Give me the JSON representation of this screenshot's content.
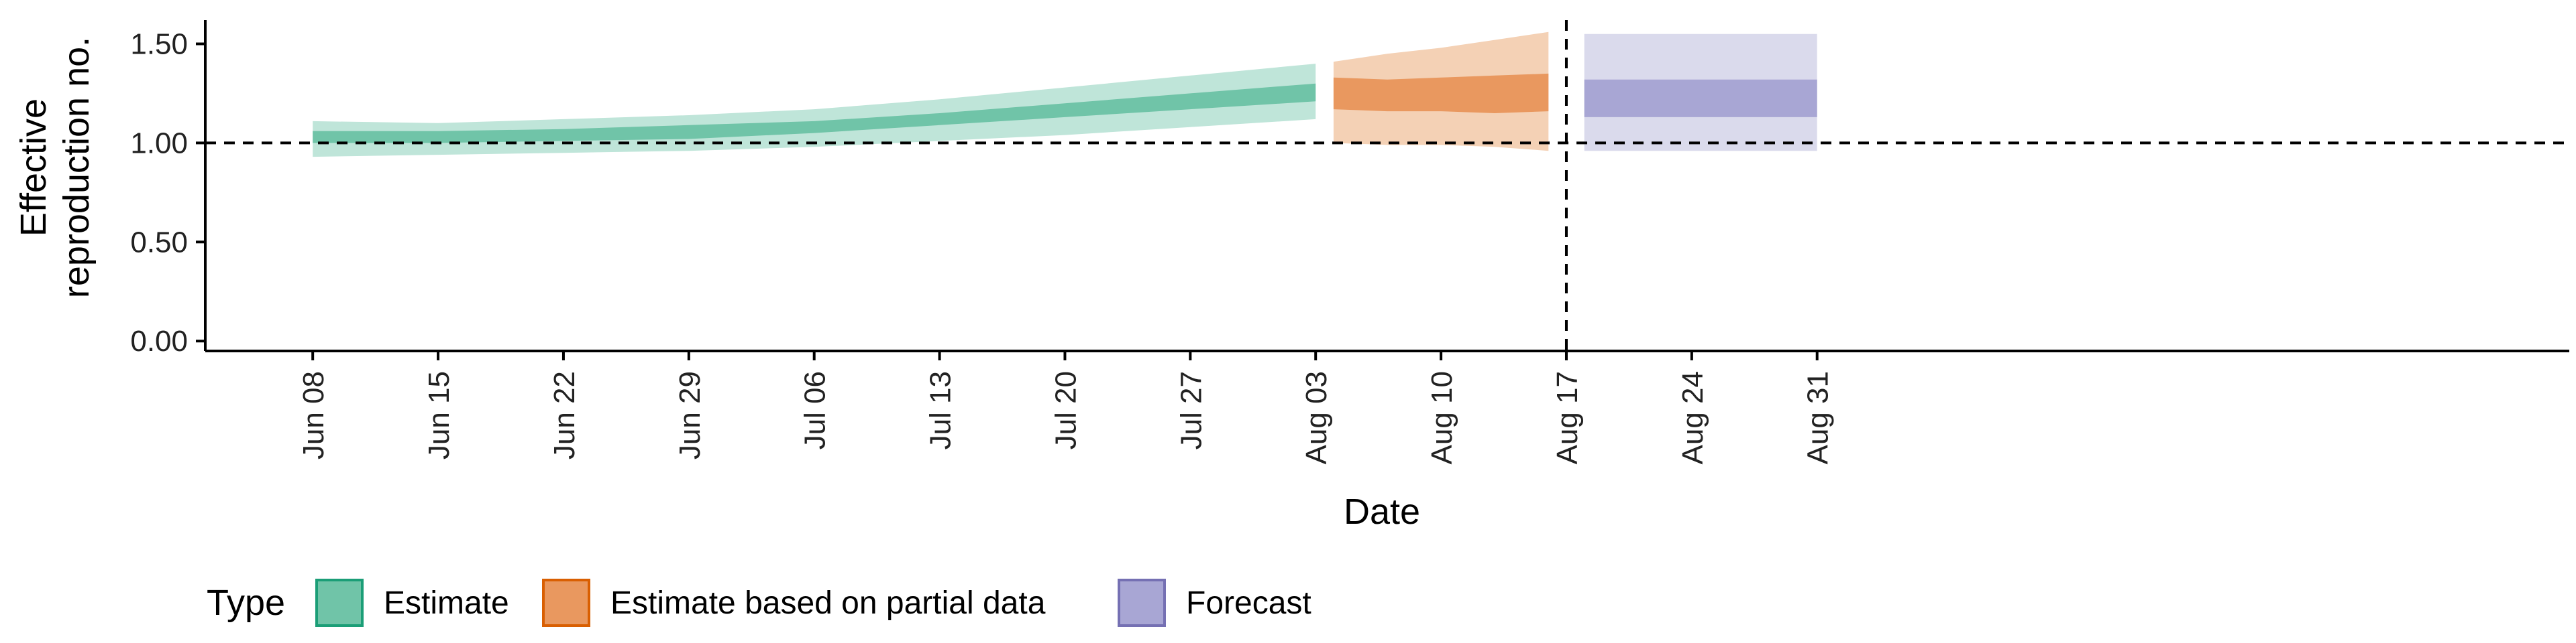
{
  "chart_data": {
    "type": "area",
    "xlabel": "Date",
    "ylabel_lines": [
      "Effective",
      "reproduction no."
    ],
    "ylim": [
      -0.05,
      1.62
    ],
    "yticks": [
      0.0,
      0.5,
      1.0,
      1.5
    ],
    "ytick_labels": [
      "0.00",
      "0.50",
      "1.00",
      "1.50"
    ],
    "xlim": [
      -6,
      126
    ],
    "xtick_labels": [
      "Jun 08",
      "Jun 15",
      "Jun 22",
      "Jun 29",
      "Jul 06",
      "Jul 13",
      "Jul 20",
      "Jul 27",
      "Aug 03",
      "Aug 10",
      "Aug 17",
      "Aug 24",
      "Aug 31"
    ],
    "xtick_days": [
      0,
      7,
      14,
      21,
      28,
      35,
      42,
      49,
      56,
      63,
      70,
      77,
      84
    ],
    "reference_hline": 1.0,
    "reference_vline_day": 70,
    "series": [
      {
        "name": "Estimate",
        "x": [
          0,
          7,
          14,
          21,
          28,
          35,
          42,
          49,
          56
        ],
        "median": [
          1.03,
          1.03,
          1.04,
          1.05,
          1.08,
          1.12,
          1.16,
          1.21,
          1.26
        ],
        "lower_50": [
          1.0,
          1.0,
          1.01,
          1.02,
          1.05,
          1.09,
          1.13,
          1.17,
          1.21
        ],
        "upper_50": [
          1.06,
          1.06,
          1.07,
          1.09,
          1.11,
          1.15,
          1.2,
          1.25,
          1.3
        ],
        "lower_90": [
          0.93,
          0.94,
          0.95,
          0.96,
          0.98,
          1.01,
          1.04,
          1.08,
          1.12
        ],
        "upper_90": [
          1.11,
          1.1,
          1.12,
          1.14,
          1.17,
          1.22,
          1.28,
          1.34,
          1.4
        ]
      },
      {
        "name": "Estimate based on partial data",
        "x": [
          57,
          60,
          63,
          66,
          69
        ],
        "median": [
          1.25,
          1.24,
          1.25,
          1.25,
          1.26
        ],
        "lower_50": [
          1.17,
          1.16,
          1.16,
          1.15,
          1.16
        ],
        "upper_50": [
          1.33,
          1.32,
          1.33,
          1.34,
          1.35
        ],
        "lower_90": [
          1.0,
          0.99,
          0.99,
          0.98,
          0.96
        ],
        "upper_90": [
          1.41,
          1.45,
          1.48,
          1.52,
          1.56
        ]
      },
      {
        "name": "Forecast",
        "x": [
          71,
          84
        ],
        "median": [
          1.22,
          1.22
        ],
        "lower_50": [
          1.13,
          1.13
        ],
        "upper_50": [
          1.32,
          1.32
        ],
        "lower_90": [
          0.96,
          0.96
        ],
        "upper_90": [
          1.55,
          1.55
        ]
      }
    ],
    "legend": {
      "title": "Type",
      "position": "bottom-left",
      "entries": [
        "Estimate",
        "Estimate based on partial data",
        "Forecast"
      ]
    },
    "colors": {
      "Estimate": {
        "fill": "#70C4A8",
        "light": "#BFE5D9",
        "border": "#1B9E77"
      },
      "Estimate based on partial data": {
        "fill": "#E9985F",
        "light": "#F4D1B5",
        "border": "#D95F02"
      },
      "Forecast": {
        "fill": "#A8A6D4",
        "light": "#DADAEC",
        "border": "#7570B3"
      },
      "axis": "#000000",
      "tick_text": "#222222"
    }
  }
}
